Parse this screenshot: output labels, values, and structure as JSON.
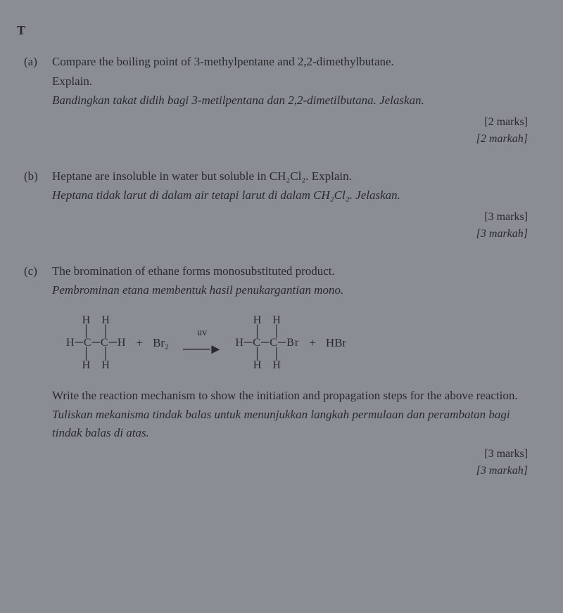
{
  "sectionTag": "T",
  "qa": {
    "label": "(a)",
    "en1": "Compare the boiling point of 3-methylpentane and 2,2-dimethylbutane.",
    "en2": "Explain.",
    "ms": "Bandingkan takat didih bagi 3-metilpentana dan 2,2-dimetilbutana. Jelaskan.",
    "marksEn": "[2 marks]",
    "marksMs": "[2 markah]"
  },
  "qb": {
    "label": "(b)",
    "en": "Heptane are insoluble in water but soluble in CH₂Cl₂. Explain.",
    "ms": "Heptana tidak larut di dalam air tetapi larut di dalam CH₂Cl₂. Jelaskan.",
    "marksEn": "[3 marks]",
    "marksMs": "[3 markah]"
  },
  "qc": {
    "label": "(c)",
    "en": "The bromination of ethane forms monosubstituted product.",
    "ms": "Pembrominan etana membentuk hasil penukargantian mono.",
    "reaction": {
      "reagentPlus": "+",
      "br2": "Br₂",
      "arrowLabel": "uv",
      "productPlus": "+",
      "hbr": "HBr"
    },
    "en2": "Write the reaction mechanism to show the initiation and propagation steps for the above reaction.",
    "ms2": "Tuliskan mekanisma tindak balas untuk menunjukkan langkah permulaan dan perambatan bagi tindak balas di atas.",
    "marksEn": "[3 marks]",
    "marksMs": "[3 markah]"
  },
  "ethane": {
    "r1": "H   H",
    "r2": "│   │",
    "r3": "H─C─C─H",
    "r4": "│   │",
    "r5": "H   H"
  },
  "bromoethane": {
    "r1": "H   H",
    "r2": "│   │",
    "r3": "H─C─C─Br",
    "r4": "│   │",
    "r5": "H   H"
  }
}
